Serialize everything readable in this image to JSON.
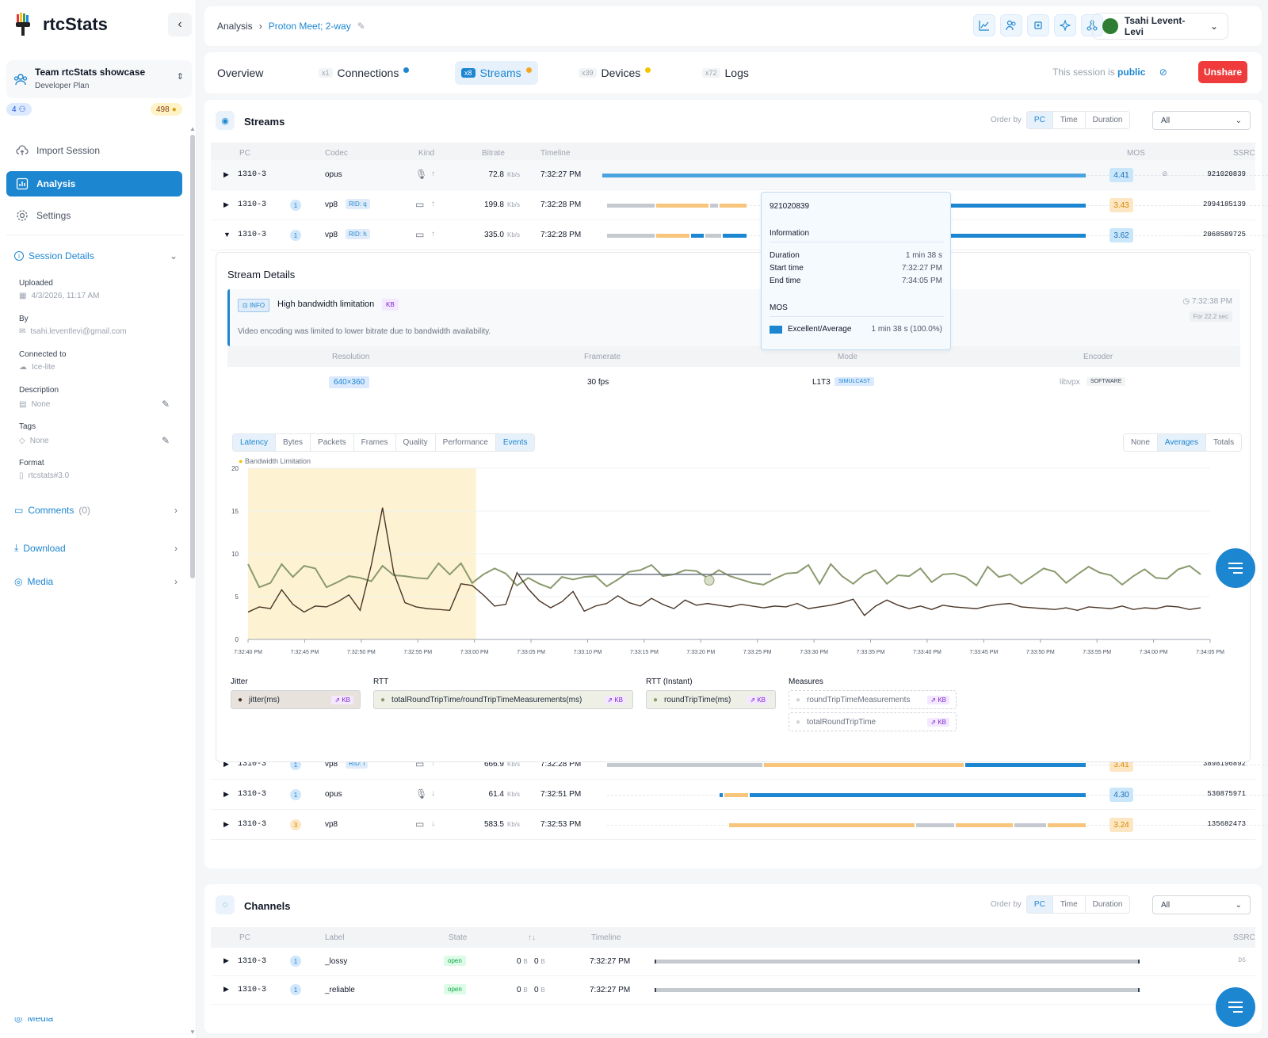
{
  "app": {
    "name": "rtcStats"
  },
  "team": {
    "name": "Team rtcStats showcase",
    "plan": "Developer Plan",
    "members": "4",
    "credits": "498"
  },
  "nav": {
    "import": "Import Session",
    "analysis": "Analysis",
    "settings": "Settings"
  },
  "session": {
    "title": "Session Details",
    "uploaded_label": "Uploaded",
    "uploaded": "4/3/2026, 11:17 AM",
    "by_label": "By",
    "by": "tsahi.leventlevi@gmail.com",
    "connected_label": "Connected to",
    "connected": "Ice-lite",
    "description_label": "Description",
    "description": "None",
    "tags_label": "Tags",
    "tags": "None",
    "format_label": "Format",
    "format": "rtcstats#3.0"
  },
  "sections": {
    "comments": "Comments",
    "comments_count": "(0)",
    "download": "Download",
    "media": "Media"
  },
  "breadcrumb": {
    "root": "Analysis",
    "current": "Proton Meet; 2-way"
  },
  "user": {
    "name": "Tsahi Levent-Levi"
  },
  "tabs": [
    {
      "count": "x1",
      "label": "Connections",
      "dot": "#1d86d1"
    },
    {
      "count": "x8",
      "label": "Streams",
      "dot": "#f5a623"
    },
    {
      "count": "x39",
      "label": "Devices",
      "dot": "#f5c400"
    },
    {
      "count": "x72",
      "label": "Logs"
    }
  ],
  "share": {
    "prefix": "This session is",
    "state": "public",
    "button": "Unshare"
  },
  "streams": {
    "title": "Streams",
    "order_label": "Order by",
    "order_options": [
      "PC",
      "Time",
      "Duration"
    ],
    "filter": "All",
    "columns": [
      "PC",
      "Codec",
      "Kind",
      "Bitrate",
      "Timeline",
      "MOS",
      "SSRC"
    ],
    "rows": [
      {
        "pc": "1310-3",
        "badge": "",
        "codec": "opus",
        "rid": "",
        "kind": "mic",
        "dir": "↑",
        "bitrate": "72.8",
        "unit": "Kb/s",
        "time": "7:32:27 PM",
        "mos": "4.41",
        "mos_class": "g",
        "ssrc": "921020839",
        "expanded": false
      },
      {
        "pc": "1310-3",
        "badge": "1",
        "codec": "vp8",
        "rid": "RID: q",
        "kind": "cam",
        "dir": "↑",
        "bitrate": "199.8",
        "unit": "Kb/s",
        "time": "7:32:28 PM",
        "mos": "3.43",
        "mos_class": "o",
        "ssrc": "2994185139",
        "expanded": false
      },
      {
        "pc": "1310-3",
        "badge": "1",
        "codec": "vp8",
        "rid": "RID: h",
        "kind": "cam",
        "dir": "↑",
        "bitrate": "335.0",
        "unit": "Kb/s",
        "time": "7:32:28 PM",
        "mos": "3.62",
        "mos_class": "g",
        "ssrc": "2068589725",
        "expanded": true
      },
      {
        "pc": "1310-3",
        "badge": "1",
        "codec": "vp8",
        "rid": "RID: f",
        "kind": "cam",
        "dir": "↑",
        "bitrate": "666.9",
        "unit": "Kb/s",
        "time": "7:32:28 PM",
        "mos": "3.41",
        "mos_class": "o",
        "ssrc": "3898196892",
        "expanded": false
      },
      {
        "pc": "1310-3",
        "badge": "1",
        "codec": "opus",
        "rid": "",
        "kind": "mic",
        "dir": "↓",
        "bitrate": "61.4",
        "unit": "Kb/s",
        "time": "7:32:51 PM",
        "mos": "4.30",
        "mos_class": "g",
        "ssrc": "530875971",
        "expanded": false
      },
      {
        "pc": "1310-3",
        "badge": "3",
        "codec": "vp8",
        "rid": "",
        "kind": "cam",
        "dir": "↓",
        "bitrate": "583.5",
        "unit": "Kb/s",
        "time": "7:32:53 PM",
        "mos": "3.24",
        "mos_class": "o",
        "ssrc": "135682473",
        "expanded": false
      }
    ]
  },
  "tooltip": {
    "ssrc": "921020839",
    "info_title": "Information",
    "duration_label": "Duration",
    "duration": "1 min 38 s",
    "start_label": "Start time",
    "start": "7:32:27 PM",
    "end_label": "End time",
    "end": "7:34:05 PM",
    "mos_title": "MOS",
    "mos_item": "Excellent/Average",
    "mos_item_value": "1 min 38 s (100.0%)"
  },
  "details": {
    "title": "Stream Details",
    "info_tag": "INFO",
    "info_title": "High bandwidth limitation",
    "info_kb": "KB",
    "info_text": "Video encoding was limited to lower bitrate due to bandwidth availability.",
    "info_time": "7:32:38 PM",
    "info_for": "For 22.2 sec",
    "columns": [
      "Resolution",
      "Framerate",
      "Mode",
      "Encoder"
    ],
    "resolution": "640×360",
    "framerate": "30 fps",
    "mode": "L1T3",
    "mode_tag": "SIMULCAST",
    "encoder": "libvpx",
    "encoder_tag": "SOFTWARE",
    "metric_tabs": [
      "Latency",
      "Bytes",
      "Packets",
      "Frames",
      "Quality",
      "Performance",
      "Events"
    ],
    "agg_tabs": [
      "None",
      "Averages",
      "Totals"
    ],
    "event_legend": "Bandwidth Limitation",
    "groups": {
      "jitter": "Jitter",
      "rtt": "RTT",
      "rtt_instant": "RTT (Instant)",
      "measures": "Measures"
    },
    "series_labels": {
      "jitter": "jitter(ms)",
      "rtt": "totalRoundTripTime/roundTripTimeMeasurements(ms)",
      "rtt_instant": "roundTripTime(ms)",
      "m1": "roundTripTimeMeasurements",
      "m2": "totalRoundTripTime"
    },
    "kb": "KB"
  },
  "chart_data": {
    "type": "line",
    "ylim": [
      0,
      20
    ],
    "yticks": [
      "0",
      "5",
      "10",
      "15",
      "20"
    ],
    "x_ticks": [
      "7:32:40 PM",
      "7:32:45 PM",
      "7:32:50 PM",
      "7:32:55 PM",
      "7:33:00 PM",
      "7:33:05 PM",
      "7:33:10 PM",
      "7:33:15 PM",
      "7:33:20 PM",
      "7:33:25 PM",
      "7:33:30 PM",
      "7:33:35 PM",
      "7:33:40 PM",
      "7:33:45 PM",
      "7:33:50 PM",
      "7:33:55 PM",
      "7:34:00 PM",
      "7:34:05 PM"
    ],
    "event_band": {
      "label": "Bandwidth Limitation",
      "x_start": "7:32:40 PM",
      "x_end": "7:33:00.5 PM"
    },
    "series": [
      {
        "name": "totalRoundTripTime/roundTripTimeMeasurements(ms)",
        "color": "#8a9a6e",
        "values": [
          8.8,
          6.1,
          6.6,
          8.8,
          7.3,
          8.6,
          8.3,
          6.1,
          6.7,
          7.4,
          7.2,
          6.8,
          8.6,
          7.5,
          7.4,
          7.2,
          7.1,
          8.9,
          7.6,
          8.9,
          6.6,
          7.6,
          8.3,
          7.7,
          6.3,
          7.2,
          6.5,
          6.0,
          7.3,
          7.0,
          7.3,
          7.4,
          6.2,
          7.0,
          7.9,
          8.1,
          8.7,
          7.4,
          7.6,
          8.1,
          8.0,
          7.2,
          8.1,
          7.4,
          7.0,
          6.6,
          6.4,
          7.1,
          7.7,
          7.8,
          8.7,
          6.5,
          8.8,
          7.4,
          6.5,
          7.6,
          8.1,
          6.5,
          7.5,
          7.4,
          8.3,
          6.7,
          7.6,
          7.7,
          7.3,
          6.3,
          8.5,
          7.3,
          7.6,
          6.5,
          7.4,
          8.3,
          7.9,
          6.6,
          7.6,
          8.5,
          7.8,
          7.5,
          6.4,
          7.4,
          8.2,
          7.2,
          7.1,
          8.2,
          8.6,
          7.6
        ]
      },
      {
        "name": "jitter(ms)",
        "color": "#4a3526",
        "values": [
          3.2,
          3.8,
          3.6,
          5.8,
          4.1,
          3.2,
          3.9,
          3.8,
          4.4,
          5.2,
          3.4,
          8.7,
          15.4,
          7.8,
          4.3,
          3.8,
          3.6,
          3.5,
          3.4,
          6.5,
          6.3,
          5.2,
          3.9,
          4.1,
          7.8,
          5.9,
          4.5,
          3.7,
          4.4,
          5.6,
          3.3,
          3.9,
          4.2,
          5.1,
          4.3,
          3.9,
          4.8,
          4.1,
          3.6,
          4.6,
          4.0,
          4.2,
          4.0,
          3.8,
          4.1,
          3.9,
          3.7,
          3.9,
          3.8,
          4.2,
          3.6,
          3.8,
          4.0,
          4.3,
          4.7,
          2.8,
          3.9,
          4.6,
          4.0,
          3.6,
          3.9,
          3.5,
          4.0,
          3.8,
          3.7,
          3.6,
          3.9,
          4.1,
          4.2,
          3.8,
          3.7,
          3.6,
          3.5,
          3.7,
          3.4,
          3.8,
          3.7,
          3.6,
          3.9,
          3.5,
          3.7,
          3.6,
          3.9,
          3.8,
          3.5,
          3.7
        ]
      }
    ]
  },
  "channels": {
    "title": "Channels",
    "order_label": "Order by",
    "order_options": [
      "PC",
      "Time",
      "Duration"
    ],
    "filter": "All",
    "columns": [
      "PC",
      "Label",
      "State",
      "↑↓",
      "Timeline",
      "SSRC"
    ],
    "rows": [
      {
        "pc": "1310-3",
        "badge": "1",
        "label": "_lossy",
        "state": "open",
        "in": "0",
        "out": "0",
        "unit": "B",
        "time": "7:32:27 PM",
        "ssrc": "D5"
      },
      {
        "pc": "1310-3",
        "badge": "1",
        "label": "_reliable",
        "state": "open",
        "in": "0",
        "out": "0",
        "unit": "B",
        "time": "7:32:27 PM",
        "ssrc": ""
      }
    ]
  }
}
